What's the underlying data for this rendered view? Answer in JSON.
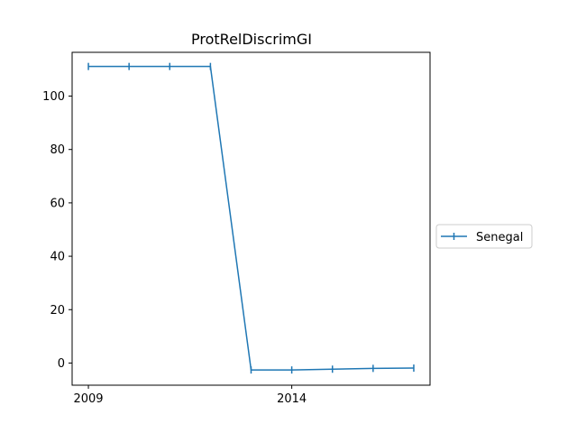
{
  "chart_data": {
    "type": "line",
    "title": "ProtRelDiscrimGI",
    "xlabel": "",
    "ylabel": "",
    "x_ticks": [
      2009,
      2014
    ],
    "y_ticks": [
      0,
      20,
      40,
      60,
      80,
      100
    ],
    "xlim": [
      2008.6,
      2017.4
    ],
    "ylim": [
      -8.3,
      116.4
    ],
    "grid": false,
    "legend_position": "right",
    "series": [
      {
        "name": "Senegal",
        "color": "#1f77b4",
        "marker": "vertical-line",
        "x": [
          2009,
          2010,
          2011,
          2012,
          2013,
          2014,
          2015,
          2016,
          2017
        ],
        "y": [
          111.1,
          111.1,
          111.1,
          111.1,
          -2.6,
          -2.6,
          -2.3,
          -2.0,
          -1.9
        ]
      }
    ]
  }
}
